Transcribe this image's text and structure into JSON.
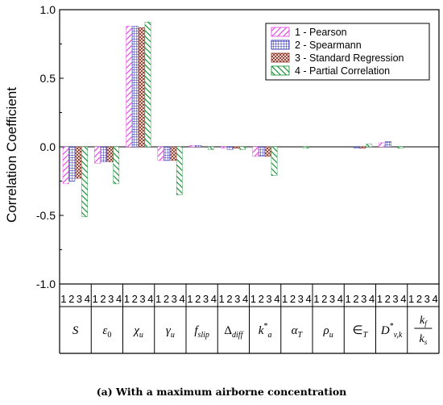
{
  "chart_data": {
    "type": "bar",
    "ylabel": "Correlation Coefficient",
    "ylim": [
      -1.0,
      1.0
    ],
    "y_ticks": [
      "1.0",
      "0.5",
      "0.0",
      "-0.5",
      "-1.0"
    ],
    "y_tick_values": [
      1.0,
      0.5,
      0.0,
      -0.5,
      -1.0
    ],
    "categories": [
      "S",
      "ε0",
      "χu",
      "γu",
      "fslip",
      "Δdiff",
      "k*a",
      "αT",
      "ρu",
      "∈T",
      "D*v,k",
      "kf/ks"
    ],
    "group_sublabels": [
      "1",
      "2",
      "3",
      "4"
    ],
    "legend_position": "top-right",
    "series": [
      {
        "name": "1 - Pearson",
        "pattern": "forward-diagonal-hatch",
        "color": "#e040e0",
        "values": [
          -0.27,
          -0.12,
          0.88,
          -0.1,
          0.01,
          -0.01,
          -0.07,
          0.0,
          0.0,
          0.0,
          0.03,
          0.0
        ]
      },
      {
        "name": "2 - Spearmann",
        "pattern": "grid-hatch",
        "color": "#1a1aa8",
        "values": [
          -0.25,
          -0.11,
          0.88,
          -0.1,
          0.01,
          -0.02,
          -0.07,
          0.0,
          0.0,
          -0.01,
          0.04,
          0.0
        ]
      },
      {
        "name": "3 - Standard Regression",
        "pattern": "cross-hatch",
        "color": "#8b2a1a",
        "values": [
          -0.23,
          -0.11,
          0.87,
          -0.1,
          0.0,
          -0.01,
          -0.07,
          0.0,
          0.0,
          -0.01,
          0.0,
          0.0
        ]
      },
      {
        "name": "4 - Partial Correlation",
        "pattern": "backward-diagonal-hatch",
        "color": "#0a8a2a",
        "values": [
          -0.51,
          -0.27,
          0.91,
          -0.35,
          -0.02,
          -0.02,
          -0.21,
          -0.01,
          0.0,
          0.02,
          -0.01,
          0.0
        ]
      }
    ]
  },
  "caption": "(a) With a maximum airborne concentration"
}
